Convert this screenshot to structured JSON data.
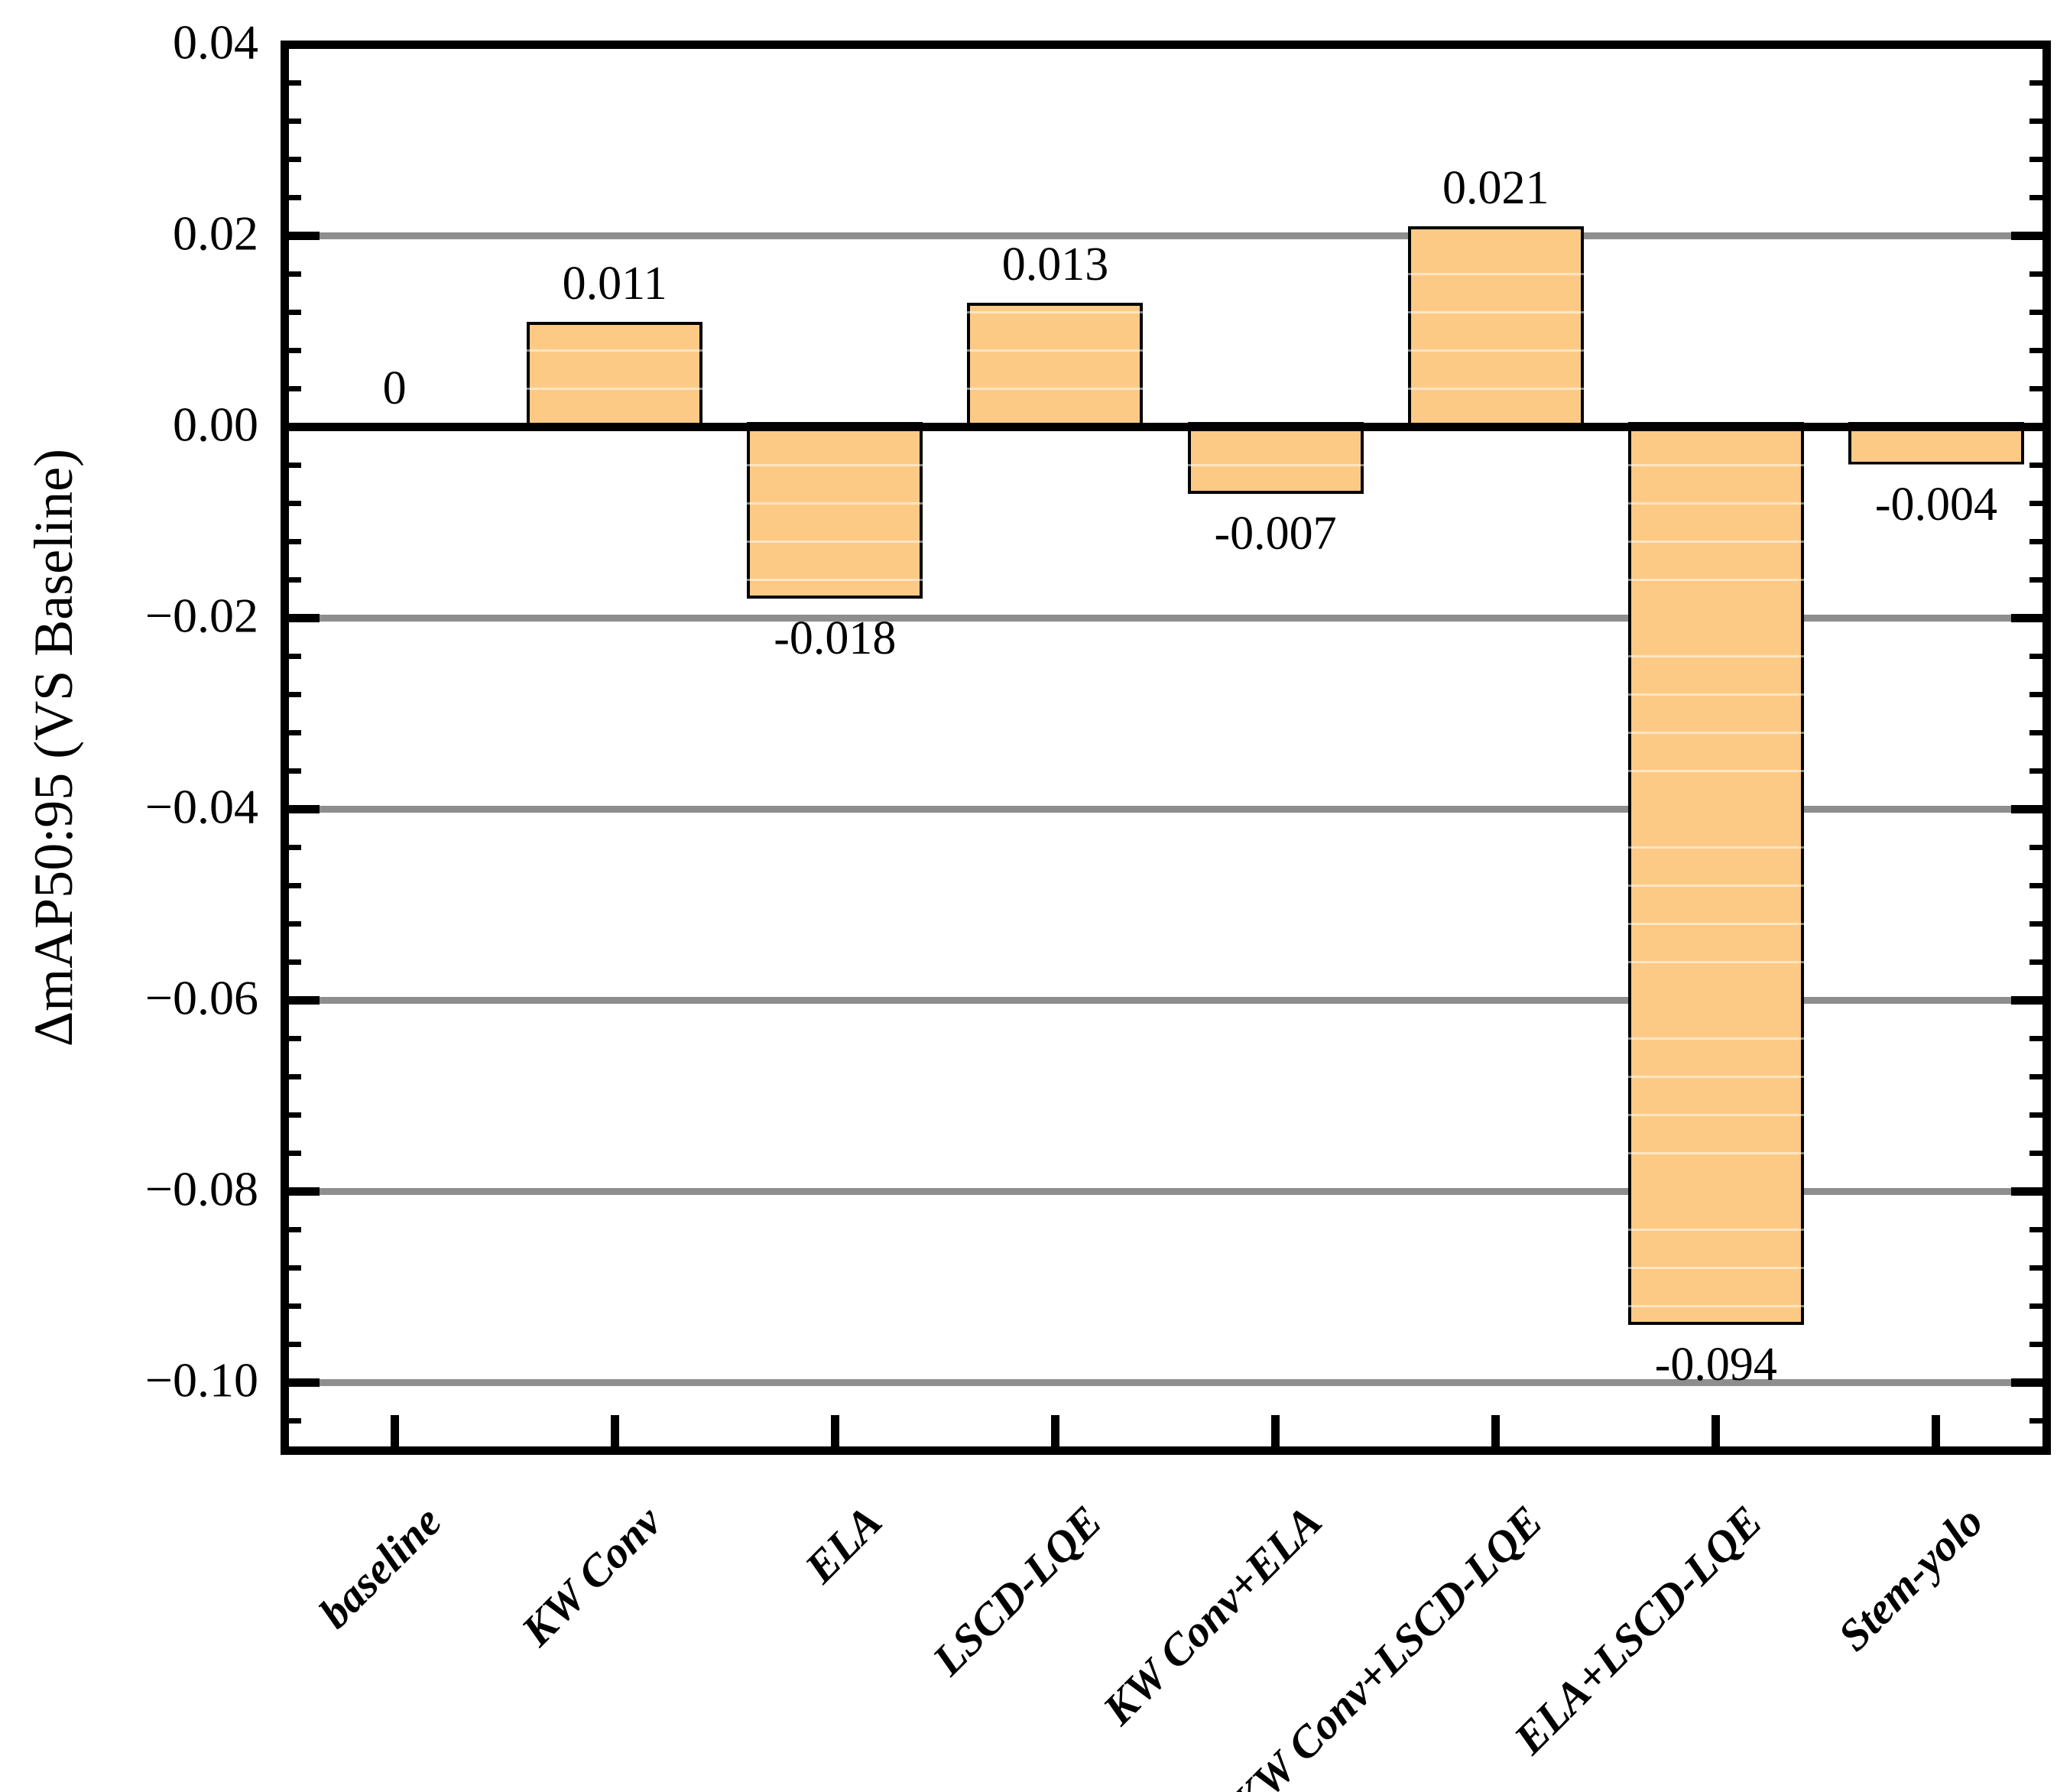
{
  "chart_data": {
    "type": "bar",
    "title": "",
    "xlabel": "",
    "ylabel": "ΔmAP50:95 (VS Baseline)",
    "categories": [
      "baseline",
      "KW Conv",
      "ELA",
      "LSCD-LQE",
      "KW Conv+ELA",
      "KW Conv+LSCD-LQE",
      "ELA+LSCD-LQE",
      "Stem-yolo"
    ],
    "values": [
      0,
      0.011,
      -0.018,
      0.013,
      -0.007,
      0.021,
      -0.094,
      -0.004
    ],
    "bar_value_labels": [
      "0",
      "0.011",
      "-0.018",
      "0.013",
      "-0.007",
      "0.021",
      "-0.094",
      "-0.004"
    ],
    "ylim": [
      -0.107,
      0.04
    ],
    "ytick_values": [
      0.04,
      0.02,
      0,
      -0.02,
      -0.04,
      -0.06,
      -0.08,
      -0.1
    ],
    "ytick_labels": [
      "0.04",
      "0.02",
      "0.00",
      "−0.02",
      "−0.04",
      "−0.06",
      "−0.08",
      "−0.10"
    ],
    "minor_tick_step": 0.004,
    "grid": true,
    "legend_position": "none",
    "bar_width_fraction": 0.8,
    "colors": {
      "bar_fill": "#FDCA86",
      "bar_edge": "#000000",
      "grid_major": "#8E8E8E",
      "axis": "#000000",
      "minor_grid_over_bars": "rgba(255,255,255,0.5)",
      "background": "#FFFFFF"
    }
  }
}
